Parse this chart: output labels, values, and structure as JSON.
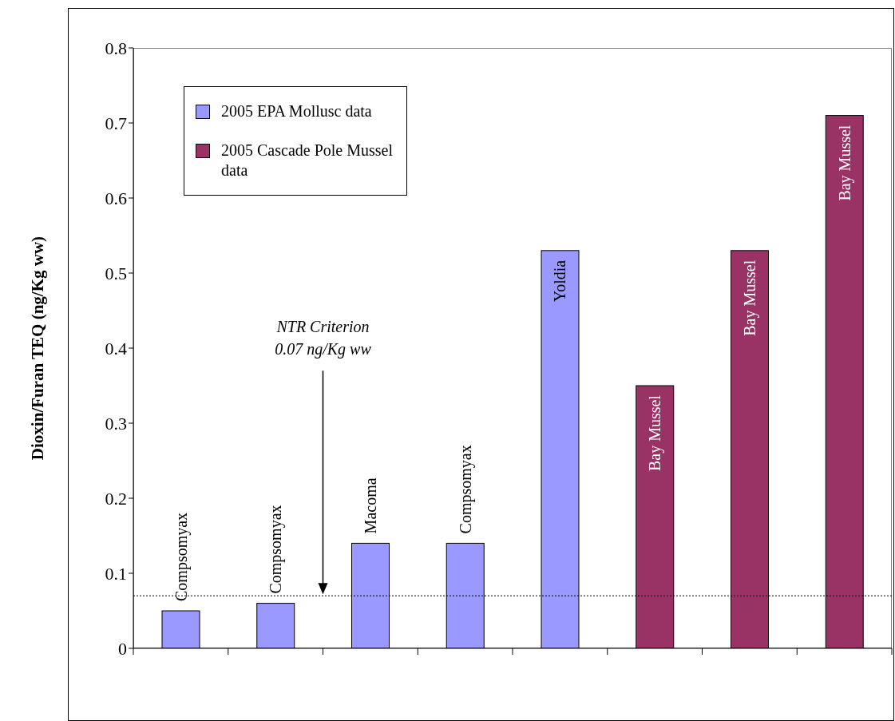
{
  "chart_data": {
    "type": "bar",
    "ylabel": "Dioxin/Furan TEQ (ng/Kg ww)",
    "categories": [
      null,
      null,
      null,
      null,
      null,
      null,
      null,
      null
    ],
    "series": [
      {
        "name": "2005 EPA Mollusc data",
        "color": "#9999ff",
        "values": [
          0.05,
          0.06,
          0.14,
          0.14,
          0.53,
          null,
          null,
          null
        ]
      },
      {
        "name": "2005 Cascade Pole Mussel data",
        "color": "#993366",
        "values": [
          null,
          null,
          null,
          null,
          null,
          0.35,
          0.53,
          0.71
        ]
      }
    ],
    "ylim": [
      0,
      0.8
    ],
    "yticks": [
      0,
      0.1,
      0.2,
      0.3,
      0.4,
      0.5,
      0.6,
      0.7,
      0.8
    ],
    "ref_lines": [
      {
        "axis": "y",
        "value": 0.07,
        "line_style": "dotted",
        "color": "#000000"
      }
    ],
    "annotations": [
      "NTR Criterion\n0.07 ng/Kg ww",
      {
        "text": "Compsomyax",
        "y": 0.05
      },
      {
        "text": "Compsomyax",
        "y": 0.06
      },
      {
        "text": "Macoma",
        "y": 0.14
      },
      {
        "text": "Compsomyax",
        "y": 0.14
      },
      {
        "text": "Yoldia",
        "y": 0.53
      },
      {
        "text": "Bay Mussel",
        "y": 0.35
      },
      {
        "text": "Bay Mussel",
        "y": 0.53
      },
      {
        "text": "Bay Mussel",
        "y": 0.71
      }
    ],
    "legend": "top left",
    "grid": false
  }
}
